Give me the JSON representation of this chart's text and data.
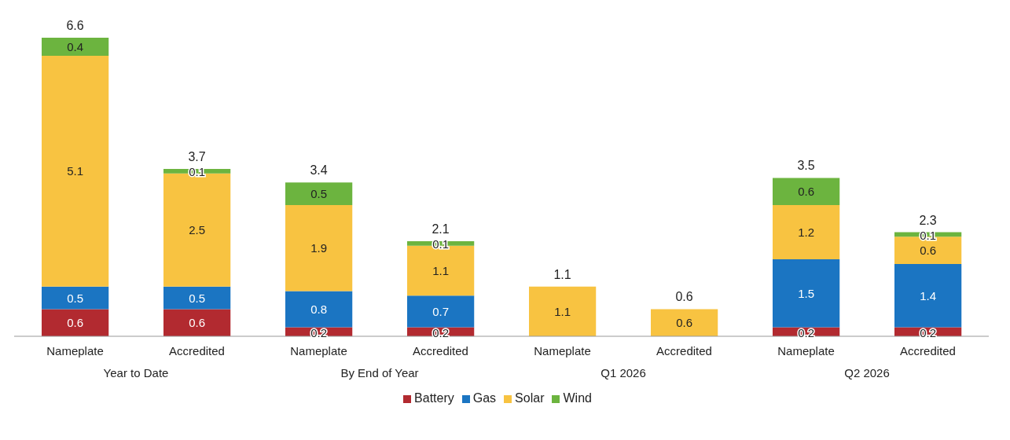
{
  "chart_data": {
    "type": "bar",
    "stacked": true,
    "data_labels": true,
    "legend": "bottom",
    "categories": [
      "Nameplate",
      "Accredited",
      "Nameplate",
      "Accredited",
      "Nameplate",
      "Accredited",
      "Nameplate",
      "Accredited"
    ],
    "series": [
      {
        "name": "Battery",
        "color": "#b22a30",
        "values": [
          0.6,
          0.6,
          0.2,
          0.2,
          null,
          null,
          0.2,
          0.2
        ]
      },
      {
        "name": "Gas",
        "color": "#1b75c2",
        "values": [
          0.5,
          0.5,
          0.8,
          0.7,
          null,
          null,
          1.5,
          1.4
        ]
      },
      {
        "name": "Solar",
        "color": "#f8c341",
        "values": [
          5.1,
          2.5,
          1.9,
          1.1,
          1.1,
          0.6,
          1.2,
          0.6
        ]
      },
      {
        "name": "Wind",
        "color": "#6cb43f",
        "values": [
          0.4,
          0.1,
          0.5,
          0.1,
          null,
          null,
          0.6,
          0.1
        ]
      }
    ],
    "totals": [
      "6.6",
      "3.7",
      "3.4",
      "2.1",
      "1.1",
      "0.6",
      "3.5",
      "2.3"
    ],
    "annotations": [
      "Year to Date",
      "By End of Year",
      "Q1 2026",
      "Q2 2026"
    ]
  }
}
